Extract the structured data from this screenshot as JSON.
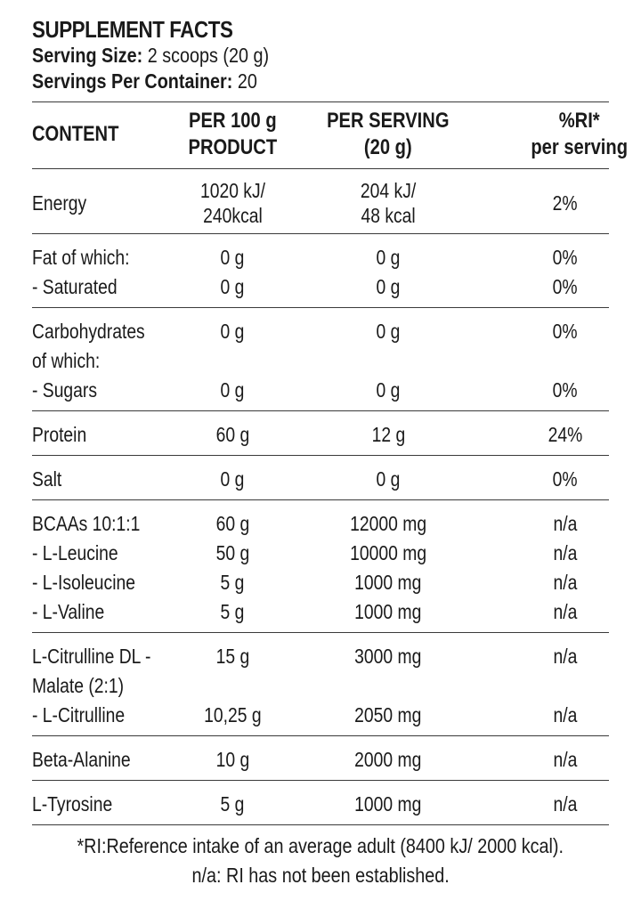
{
  "header": {
    "title": "SUPPLEMENT FACTS",
    "serving_size_label": "Serving Size:",
    "serving_size_value": "2 scoops (20 g)",
    "servings_label": "Servings Per Container:",
    "servings_value": "20"
  },
  "columns": {
    "content": "CONTENT",
    "per100_l1": "PER 100 g",
    "per100_l2": "PRODUCT",
    "serv_l1": "PER SERVING",
    "serv_l2": "(20 g)",
    "ri_l1": "%RI*",
    "ri_l2": "per serving"
  },
  "rows": {
    "energy": {
      "name": "Energy",
      "p100_1": "1020 kJ/",
      "p100_2": "240kcal",
      "serv_1": "204 kJ/",
      "serv_2": "48 kcal",
      "ri": "2%"
    },
    "fat": {
      "name": "Fat of which:",
      "p100": "0 g",
      "serv": "0 g",
      "ri": "0%"
    },
    "saturated": {
      "name": "- Saturated",
      "p100": "0 g",
      "serv": "0 g",
      "ri": "0%"
    },
    "carbs": {
      "name_1": "Carbohydrates",
      "name_2": "of which:",
      "p100": "0 g",
      "serv": "0 g",
      "ri": "0%"
    },
    "sugars": {
      "name": "- Sugars",
      "p100": "0 g",
      "serv": "0 g",
      "ri": "0%"
    },
    "protein": {
      "name": "Protein",
      "p100": "60 g",
      "serv": "12 g",
      "ri": "24%"
    },
    "salt": {
      "name": "Salt",
      "p100": "0 g",
      "serv": "0 g",
      "ri": "0%"
    },
    "bcaa": {
      "name": "BCAAs 10:1:1",
      "p100": "60 g",
      "serv": "12000 mg",
      "ri": "n/a"
    },
    "leucine": {
      "name": "- L-Leucine",
      "p100": "50 g",
      "serv": "10000 mg",
      "ri": "n/a"
    },
    "isoleucine": {
      "name": "- L-Isoleucine",
      "p100": "5 g",
      "serv": "1000 mg",
      "ri": "n/a"
    },
    "valine": {
      "name": "- L-Valine",
      "p100": "5 g",
      "serv": "1000 mg",
      "ri": "n/a"
    },
    "citrulline_malate": {
      "name_1": "L-Citrulline DL -",
      "name_2": "Malate (2:1)",
      "p100": "15 g",
      "serv": "3000 mg",
      "ri": "n/a"
    },
    "citrulline": {
      "name": "- L-Citrulline",
      "p100": "10,25 g",
      "serv": "2050 mg",
      "ri": "n/a"
    },
    "beta_alanine": {
      "name": "Beta-Alanine",
      "p100": "10 g",
      "serv": "2000 mg",
      "ri": "n/a"
    },
    "tyrosine": {
      "name": "L-Tyrosine",
      "p100": "5 g",
      "serv": "1000 mg",
      "ri": "n/a"
    }
  },
  "footnote": {
    "line1": "*RI:Reference intake of an average adult (8400 kJ/ 2000 kcal).",
    "line2": "n/a: RI has not been established."
  }
}
